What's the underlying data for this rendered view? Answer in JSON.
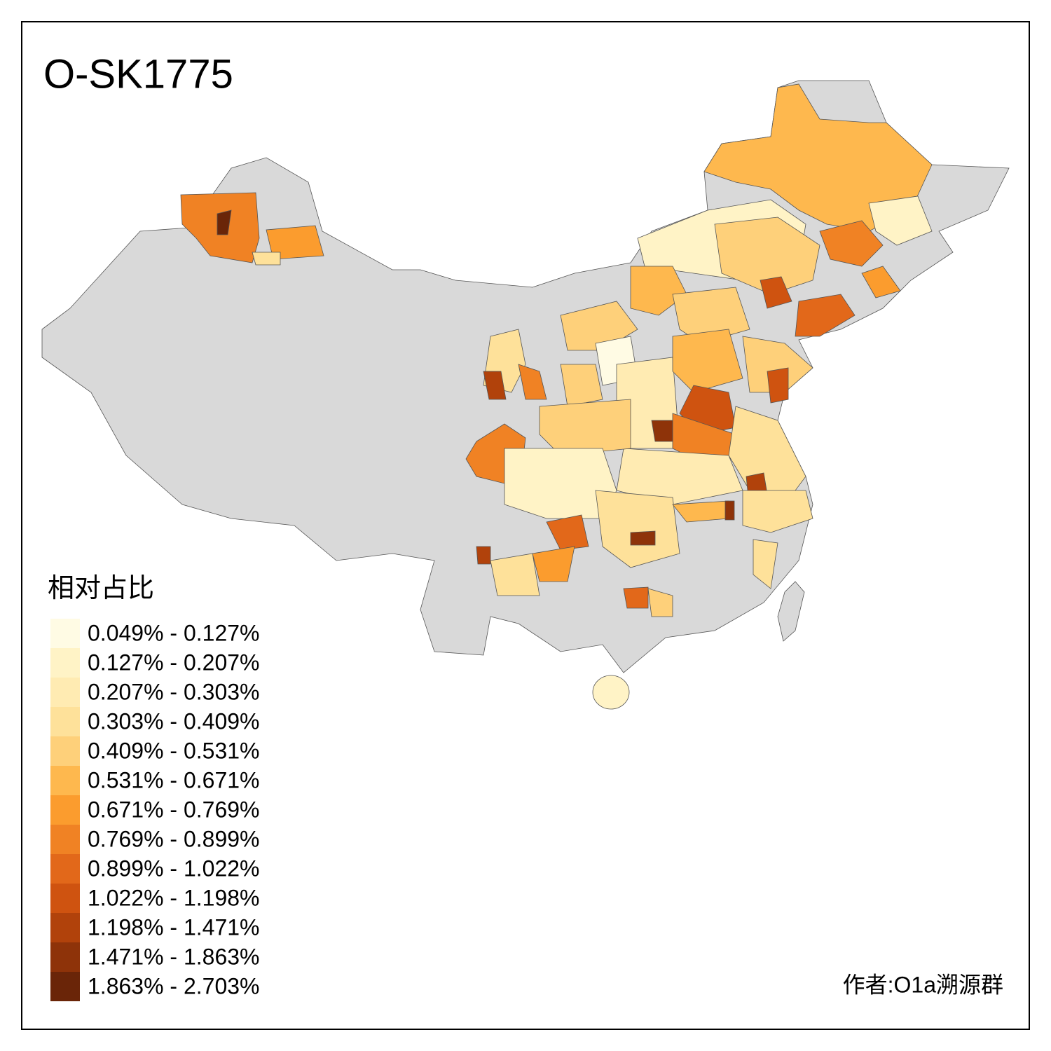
{
  "map": {
    "title": "O-SK1775",
    "legend": {
      "title": "相对占比",
      "items": [
        {
          "label": "0.049% - 0.127%",
          "color": "#fffbe4"
        },
        {
          "label": "0.127% - 0.207%",
          "color": "#fff3c6"
        },
        {
          "label": "0.207% - 0.303%",
          "color": "#ffebb2"
        },
        {
          "label": "0.303% - 0.409%",
          "color": "#fee19a"
        },
        {
          "label": "0.409% - 0.531%",
          "color": "#fed07a"
        },
        {
          "label": "0.531% - 0.671%",
          "color": "#feb84e"
        },
        {
          "label": "0.671% - 0.769%",
          "color": "#fb9c2e"
        },
        {
          "label": "0.769% - 0.899%",
          "color": "#f08224"
        },
        {
          "label": "0.899% - 1.022%",
          "color": "#e2681a"
        },
        {
          "label": "1.022% - 1.198%",
          "color": "#cf5310"
        },
        {
          "label": "1.198% - 1.471%",
          "color": "#b1420b"
        },
        {
          "label": "1.471% - 1.863%",
          "color": "#8e3309"
        },
        {
          "label": "1.863% - 2.703%",
          "color": "#6a2508"
        }
      ]
    },
    "credit": "作者:O1a溯源群"
  }
}
